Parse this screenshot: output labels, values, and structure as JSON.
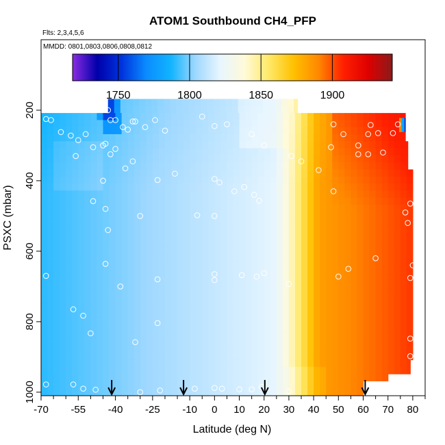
{
  "chart_data": {
    "type": "heatmap",
    "title": "ATOM1 Southbound CH4_PFP",
    "flights_note": "Flts: 2,3,4,5,6",
    "dates_note": "MMDD: 0801,0803,0806,0808,0812",
    "xlabel": "Latitude (deg N)",
    "ylabel": "PSXC (mbar)",
    "xlim": [
      -70,
      85
    ],
    "ylim": [
      1010,
      0
    ],
    "x_ticks": [
      -70,
      -55,
      -40,
      -25,
      -10,
      0,
      10,
      20,
      30,
      40,
      50,
      60,
      70,
      80
    ],
    "x_minor_ticks": [
      -65,
      -60,
      -50,
      -45,
      -35,
      -30,
      -20,
      -15,
      -5,
      5,
      15,
      25,
      35,
      45,
      55,
      65,
      75,
      85
    ],
    "y_ticks": [
      200,
      400,
      600,
      800,
      1000
    ],
    "colorbar": {
      "min": 1718,
      "max": 1942,
      "ticks": [
        1750,
        1800,
        1850,
        1900
      ],
      "colors": [
        "#8a2be2",
        "#0000aa",
        "#0033dd",
        "#0a8cff",
        "#12b4ff",
        "#9fd8ff",
        "#e8f6ff",
        "#fffad8",
        "#ffe866",
        "#ffc000",
        "#ff8800",
        "#ff2000",
        "#e00000",
        "#8b1a1a"
      ]
    },
    "profile_arrows_lat": [
      -41.5,
      -12.5,
      20.3,
      60.8
    ],
    "samples": [
      {
        "lat": -68,
        "p": 225
      },
      {
        "lat": -66,
        "p": 228
      },
      {
        "lat": -62,
        "p": 262
      },
      {
        "lat": -58,
        "p": 272
      },
      {
        "lat": -55,
        "p": 285
      },
      {
        "lat": -52,
        "p": 268
      },
      {
        "lat": -56,
        "p": 330
      },
      {
        "lat": -49,
        "p": 305
      },
      {
        "lat": -45,
        "p": 300
      },
      {
        "lat": -43,
        "p": 200
      },
      {
        "lat": -42,
        "p": 228
      },
      {
        "lat": -40,
        "p": 228
      },
      {
        "lat": -37,
        "p": 248
      },
      {
        "lat": -35,
        "p": 255
      },
      {
        "lat": -33,
        "p": 232
      },
      {
        "lat": -28,
        "p": 248
      },
      {
        "lat": -24,
        "p": 228
      },
      {
        "lat": -20,
        "p": 258
      },
      {
        "lat": -32,
        "p": 232
      },
      {
        "lat": -5,
        "p": 218
      },
      {
        "lat": 0,
        "p": 245
      },
      {
        "lat": 5,
        "p": 240
      },
      {
        "lat": 15,
        "p": 268
      },
      {
        "lat": 20,
        "p": 300
      },
      {
        "lat": -44,
        "p": 295
      },
      {
        "lat": -40,
        "p": 310
      },
      {
        "lat": -36,
        "p": 365
      },
      {
        "lat": -33,
        "p": 345
      },
      {
        "lat": -45,
        "p": 400
      },
      {
        "lat": -42,
        "p": 325
      },
      {
        "lat": -23,
        "p": 398
      },
      {
        "lat": -16,
        "p": 380
      },
      {
        "lat": 0,
        "p": 395
      },
      {
        "lat": 2,
        "p": 405
      },
      {
        "lat": 8,
        "p": 430
      },
      {
        "lat": 12,
        "p": 418
      },
      {
        "lat": 16,
        "p": 440
      },
      {
        "lat": 18,
        "p": 457
      },
      {
        "lat": 31,
        "p": 330
      },
      {
        "lat": 35,
        "p": 345
      },
      {
        "lat": 42,
        "p": 370
      },
      {
        "lat": -49,
        "p": 458
      },
      {
        "lat": -44,
        "p": 480
      },
      {
        "lat": -30,
        "p": 500
      },
      {
        "lat": -7,
        "p": 498
      },
      {
        "lat": 0,
        "p": 500
      },
      {
        "lat": -43,
        "p": 540
      },
      {
        "lat": 47,
        "p": 305
      },
      {
        "lat": 52,
        "p": 268
      },
      {
        "lat": 58,
        "p": 300
      },
      {
        "lat": 62,
        "p": 268
      },
      {
        "lat": 66,
        "p": 265
      },
      {
        "lat": 58,
        "p": 325
      },
      {
        "lat": 62,
        "p": 325
      },
      {
        "lat": 68,
        "p": 320
      },
      {
        "lat": 72,
        "p": 265
      },
      {
        "lat": 48,
        "p": 240
      },
      {
        "lat": 63,
        "p": 242
      },
      {
        "lat": 74,
        "p": 240
      },
      {
        "lat": 48,
        "p": 430
      },
      {
        "lat": 77,
        "p": 490
      },
      {
        "lat": 79,
        "p": 465
      },
      {
        "lat": 78,
        "p": 520
      },
      {
        "lat": 65,
        "p": 620
      },
      {
        "lat": 54,
        "p": 650
      },
      {
        "lat": 80,
        "p": 640
      },
      {
        "lat": -44,
        "p": 636
      },
      {
        "lat": -68,
        "p": 670
      },
      {
        "lat": -38,
        "p": 700
      },
      {
        "lat": -23,
        "p": 680
      },
      {
        "lat": 0,
        "p": 665
      },
      {
        "lat": 0,
        "p": 682
      },
      {
        "lat": 11,
        "p": 668
      },
      {
        "lat": 17,
        "p": 672
      },
      {
        "lat": 20,
        "p": 662
      },
      {
        "lat": 30,
        "p": 693
      },
      {
        "lat": 50,
        "p": 672
      },
      {
        "lat": 79,
        "p": 676
      },
      {
        "lat": -57,
        "p": 765
      },
      {
        "lat": -53,
        "p": 783
      },
      {
        "lat": -23,
        "p": 804
      },
      {
        "lat": -50,
        "p": 833
      },
      {
        "lat": -32,
        "p": 858
      },
      {
        "lat": 79,
        "p": 848
      },
      {
        "lat": 79,
        "p": 898
      },
      {
        "lat": -68,
        "p": 978
      },
      {
        "lat": -57,
        "p": 978
      },
      {
        "lat": -53,
        "p": 990
      },
      {
        "lat": -48,
        "p": 993
      },
      {
        "lat": -30,
        "p": 1000
      },
      {
        "lat": -22,
        "p": 995
      },
      {
        "lat": -8,
        "p": 990
      },
      {
        "lat": 0,
        "p": 988
      },
      {
        "lat": 3,
        "p": 990
      },
      {
        "lat": 10,
        "p": 992
      },
      {
        "lat": 15,
        "p": 992
      },
      {
        "lat": 30,
        "p": 998
      },
      {
        "lat": 19,
        "p": 985
      }
    ]
  }
}
